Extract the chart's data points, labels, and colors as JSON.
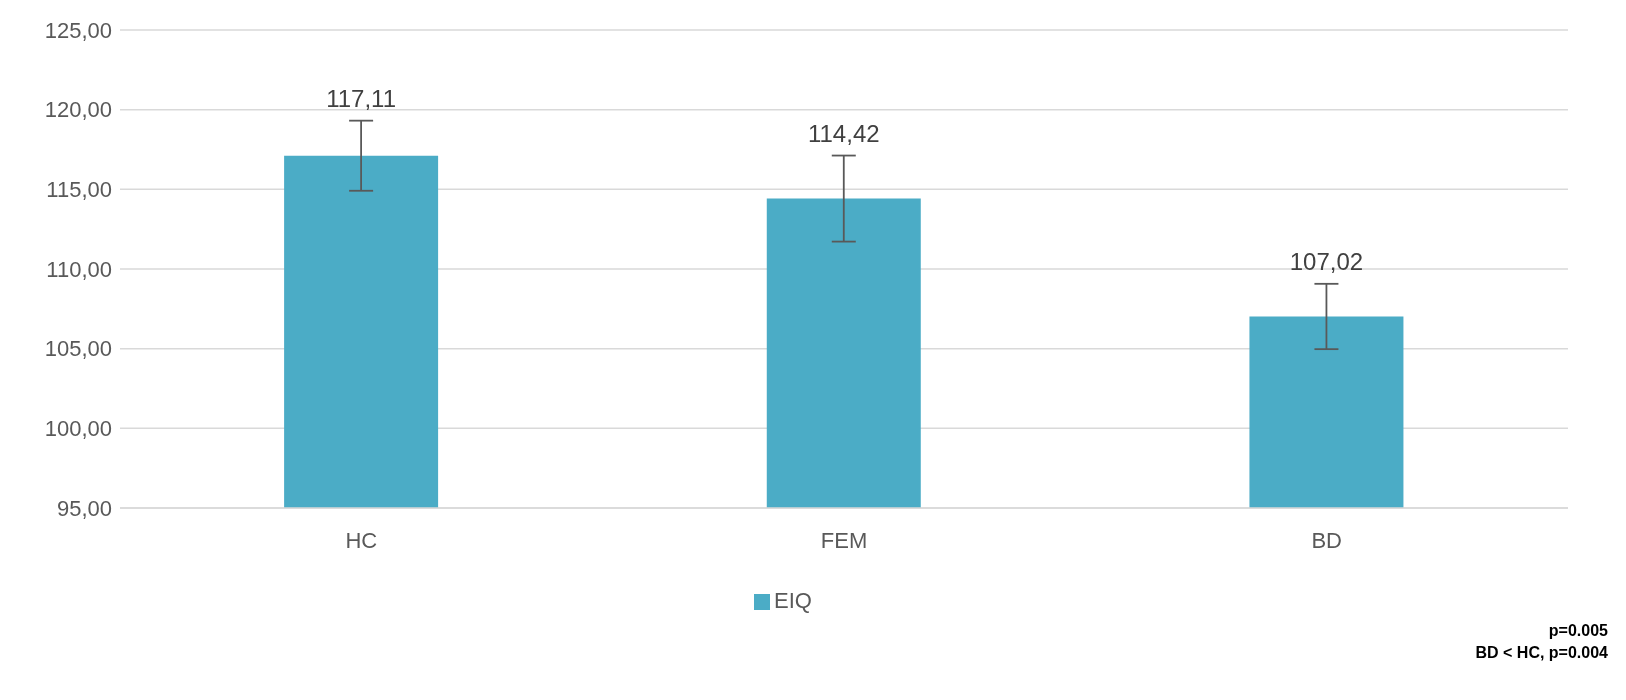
{
  "chart_data": {
    "type": "bar",
    "categories": [
      "HC",
      "FEM",
      "BD"
    ],
    "series": [
      {
        "name": "EIQ",
        "color": "#4bacc6",
        "values": [
          117.11,
          114.42,
          107.02
        ],
        "errors": [
          2.2,
          2.7,
          2.05
        ],
        "value_labels": [
          "117,11",
          "114,42",
          "107,02"
        ]
      }
    ],
    "ylim": [
      95,
      125
    ],
    "yticks": [
      {
        "value": 95,
        "label": "95,00"
      },
      {
        "value": 100,
        "label": "100,00"
      },
      {
        "value": 105,
        "label": "105,00"
      },
      {
        "value": 110,
        "label": "110,00"
      },
      {
        "value": 115,
        "label": "115,00"
      },
      {
        "value": 120,
        "label": "120,00"
      },
      {
        "value": 125,
        "label": "125,00"
      }
    ],
    "grid": "y",
    "legend": "bottom",
    "annotations": [
      "p=0.005",
      "BD < HC, p=0.004"
    ]
  }
}
